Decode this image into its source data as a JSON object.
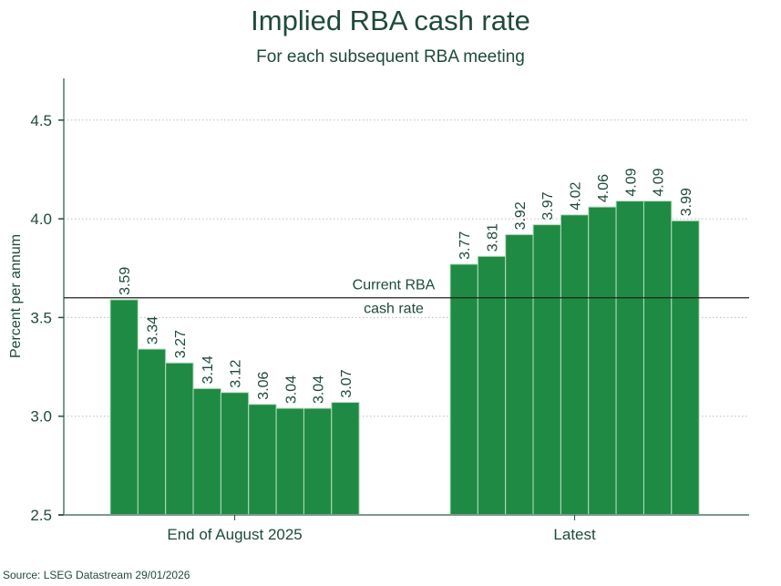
{
  "chart_data": {
    "type": "bar",
    "title": "Implied RBA cash rate",
    "subtitle": "For each subsequent RBA meeting",
    "xlabel": "",
    "ylabel": "Percent per annum",
    "ylim": [
      2.5,
      4.7
    ],
    "yticks": [
      2.5,
      3.0,
      3.5,
      4.0,
      4.5
    ],
    "ytick_labels": [
      "2.5",
      "3.0",
      "3.5",
      "4.0",
      "4.5"
    ],
    "grid": "horizontal dotted",
    "categories": [
      "End of August 2025",
      "Latest"
    ],
    "series": [
      {
        "name": "End of August 2025",
        "values": [
          3.59,
          3.34,
          3.27,
          3.14,
          3.12,
          3.06,
          3.04,
          3.04,
          3.07
        ],
        "labels": [
          "3.59",
          "3.34",
          "3.27",
          "3.14",
          "3.12",
          "3.06",
          "3.04",
          "3.04",
          "3.07"
        ]
      },
      {
        "name": "Latest",
        "values": [
          3.77,
          3.81,
          3.92,
          3.97,
          4.02,
          4.06,
          4.09,
          4.09,
          3.99
        ],
        "labels": [
          "3.77",
          "3.81",
          "3.92",
          "3.97",
          "4.02",
          "4.06",
          "4.09",
          "4.09",
          "3.99"
        ]
      }
    ],
    "reference_line": {
      "value": 3.6,
      "label_line1": "Current RBA",
      "label_line2": "cash rate"
    },
    "colors": {
      "bar": "#1f8a43",
      "bar_edge": "#b8dcc2",
      "text": "#1f4a3b",
      "axis": "#7a9a8e",
      "grid": "#bbbbbb",
      "ref_line": "#222222"
    }
  },
  "source": "Source: LSEG Datastream 29/01/2026"
}
